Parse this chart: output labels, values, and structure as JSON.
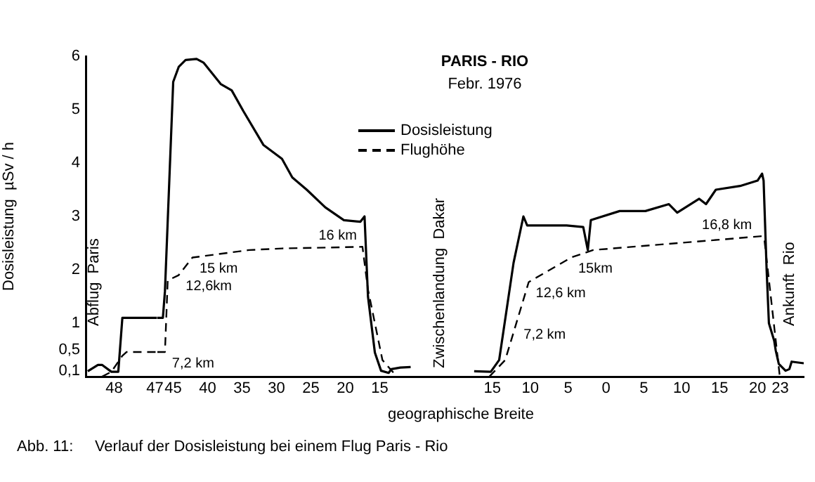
{
  "chart_data": [
    {
      "type": "line",
      "ylabel": "Dosisleistung  µSv / h",
      "xlim": [
        48.7,
        46.94
      ],
      "xticks": [
        48,
        47
      ],
      "ylim": [
        0,
        6
      ],
      "yticks": [
        {
          "value": 0.1,
          "label": "0,1"
        },
        {
          "value": 0.5,
          "label": "0,5"
        },
        1,
        2,
        3,
        4,
        5,
        6
      ],
      "series": [
        {
          "color": "#000000",
          "line_style": "solid",
          "x": [
            48.65,
            48.4,
            48.3,
            48.07,
            47.9,
            47.8,
            46.95
          ],
          "values": [
            0.1,
            0.22,
            0.22,
            0.09,
            0.09,
            1.1,
            1.1
          ]
        },
        {
          "color": "#000000",
          "line_style": "dashed",
          "x": [
            48.3,
            48.07,
            47.8,
            47.7,
            46.95
          ],
          "values": [
            0,
            0.09,
            0.39,
            0.46,
            0.46
          ]
        }
      ],
      "annotations": [
        "Abflug  Paris",
        "Abb. 11:     Verlauf der Dosisleistung bei einem Flug Paris - Rio"
      ]
    },
    {
      "type": "line",
      "legend": "top right",
      "xlim": [
        47.3,
        8.1
      ],
      "xticks": [
        45,
        40,
        35,
        30,
        25,
        20,
        15
      ],
      "ylim": [
        0,
        6
      ],
      "tick_labels": "x",
      "series": [
        {
          "name": "Dosisleistung",
          "color": "#000000",
          "line_style": "solid",
          "x": [
            47.3,
            46.5,
            46.2,
            45,
            44.2,
            43.2,
            41.6,
            40.6,
            38.1,
            36.5,
            34.8,
            31.9,
            29.2,
            27.7,
            25.6,
            22.9,
            20.2,
            17.8,
            17.2,
            16.7,
            15.7,
            14.8,
            13.7,
            13.3,
            12.0,
            10.5
          ],
          "values": [
            1.1,
            1.1,
            1.6,
            5.52,
            5.8,
            5.93,
            5.95,
            5.88,
            5.48,
            5.36,
            4.97,
            4.34,
            4.08,
            3.73,
            3.5,
            3.17,
            2.93,
            2.9,
            3.0,
            1.5,
            0.45,
            0.11,
            0.07,
            0.14,
            0.17,
            0.18
          ]
        },
        {
          "name": "Flughöhe",
          "color": "#000000",
          "line_style": "dashed",
          "x": [
            47.3,
            46.2,
            45.8,
            44.2,
            42.2,
            34,
            29.2,
            17.5,
            16.7,
            14.6,
            12.5
          ],
          "values": [
            0.46,
            0.46,
            1.8,
            1.9,
            2.23,
            2.37,
            2.4,
            2.43,
            1.63,
            0.31,
            0
          ]
        }
      ],
      "annotations": [
        {
          "text": "7,2 km",
          "x": 46.2,
          "y": 0.46
        },
        {
          "text": "12,6km",
          "x": 44.2,
          "y": 1.9
        },
        {
          "text": "15 km",
          "x": 42.2,
          "y": 2.23
        },
        {
          "text": "16 km",
          "x": 17.5,
          "y": 2.43
        }
      ]
    },
    {
      "type": "line",
      "title": "PARIS - RIO",
      "subtitle": "Febr. 1976",
      "xlabel": "geographische Breite",
      "xlim": [
        23.6,
        -26.1
      ],
      "xticks": [
        15,
        10,
        5,
        0,
        {
          "value": -5,
          "label": "5"
        },
        {
          "value": -10,
          "label": "10"
        },
        {
          "value": -15,
          "label": "15"
        },
        {
          "value": -20,
          "label": "20"
        },
        {
          "value": -23,
          "label": "23"
        }
      ],
      "ylim": [
        0,
        6
      ],
      "tick_labels": "x",
      "series": [
        {
          "color": "#000000",
          "line_style": "solid",
          "x": [
            17.4,
            15.2,
            14.1,
            12.2,
            10.9,
            10.4,
            5.2,
            3.0,
            2.4,
            2.0,
            -1.8,
            -5.2,
            -8.3,
            -9.4,
            -12.3,
            -13.2,
            -14.5,
            -17.7,
            -20,
            -20.6,
            -20.8,
            -21.2,
            -21.5,
            -22.2,
            -22.4,
            -22.8,
            -23.7,
            -24.2,
            -24.5,
            -26.1
          ],
          "values": [
            0.1,
            0.09,
            0.31,
            2.13,
            3.0,
            2.83,
            2.83,
            2.8,
            2.37,
            2.93,
            3.1,
            3.1,
            3.23,
            3.07,
            3.33,
            3.23,
            3.5,
            3.57,
            3.67,
            3.8,
            3.67,
            2.0,
            1.0,
            0.67,
            0.49,
            0.24,
            0.11,
            0.14,
            0.28,
            0.25
          ]
        },
        {
          "color": "#000000",
          "line_style": "dashed",
          "x": [
            15.4,
            13.3,
            10.2,
            4.6,
            1.7,
            -20.6,
            -20.9,
            -22.9,
            -23
          ],
          "values": [
            0,
            0.31,
            1.77,
            2.23,
            2.37,
            2.63,
            2.57,
            0.05,
            0
          ]
        }
      ],
      "annotations": [
        "Zwischenlandung  Dakar",
        {
          "text": "7,2 km",
          "x": 11.8,
          "y": 1.0
        },
        {
          "text": "12,6 km",
          "x": 10.2,
          "y": 1.77
        },
        {
          "text": "15km",
          "x": 4.6,
          "y": 2.23
        },
        {
          "text": "16,8 km",
          "x": -20,
          "y": 2.62
        },
        "Ankunft  Rio"
      ]
    }
  ]
}
